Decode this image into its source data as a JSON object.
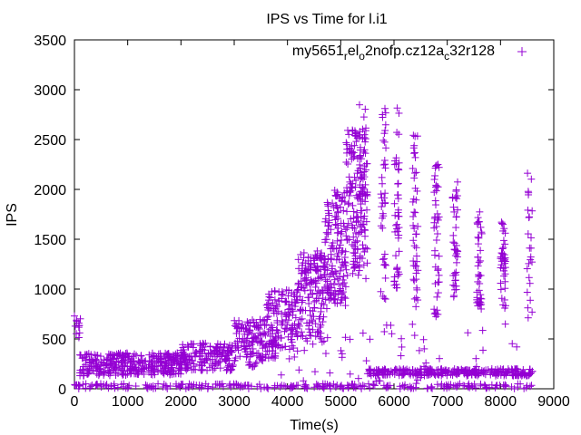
{
  "chart_data": {
    "type": "scatter",
    "title": "IPS vs Time for l.i1",
    "xlabel": "Time(s)",
    "ylabel": "IPS",
    "xlim": [
      0,
      9000
    ],
    "ylim": [
      0,
      3500
    ],
    "x_ticks": [
      "0",
      "1000",
      "2000",
      "3000",
      "4000",
      "5000",
      "6000",
      "7000",
      "8000",
      "9000"
    ],
    "y_ticks": [
      "0",
      "500",
      "1000",
      "1500",
      "2000",
      "2500",
      "3000",
      "3500"
    ],
    "grid": false,
    "legend_position": "top-right",
    "series": [
      {
        "name": "my5651_rel_o2nofp.cz12a_c32r128",
        "name_parts": [
          {
            "t": "my5651",
            "sub": false
          },
          {
            "t": "r",
            "sub": true
          },
          {
            "t": "el",
            "sub": false
          },
          {
            "t": "o",
            "sub": true
          },
          {
            "t": "2nofp.cz12a",
            "sub": false
          },
          {
            "t": "c",
            "sub": true
          },
          {
            "t": "32r128",
            "sub": false
          }
        ],
        "color": "#9400d3",
        "marker": "plus",
        "point_bands": [
          {
            "x": [
              0,
              120
            ],
            "y": [
              500,
              750
            ],
            "n": 12
          },
          {
            "x": [
              100,
              1000
            ],
            "y": [
              130,
              360
            ],
            "n": 160
          },
          {
            "x": [
              1000,
              2000
            ],
            "y": [
              140,
              360
            ],
            "n": 180
          },
          {
            "x": [
              2000,
              3000
            ],
            "y": [
              180,
              460
            ],
            "n": 180
          },
          {
            "x": [
              3000,
              3600
            ],
            "y": [
              220,
              700
            ],
            "n": 120
          },
          {
            "x": [
              3600,
              4200
            ],
            "y": [
              300,
              1000
            ],
            "n": 150
          },
          {
            "x": [
              4200,
              4700
            ],
            "y": [
              500,
              1400
            ],
            "n": 150
          },
          {
            "x": [
              4700,
              5100
            ],
            "y": [
              800,
              2000
            ],
            "n": 150
          },
          {
            "x": [
              5100,
              5500
            ],
            "y": [
              1100,
              2600
            ],
            "n": 160
          },
          {
            "x": [
              5350,
              5500
            ],
            "y": [
              1500,
              2950
            ],
            "n": 30
          },
          {
            "x": [
              5750,
              5850
            ],
            "y": [
              900,
              2850
            ],
            "n": 40
          },
          {
            "x": [
              6000,
              6100
            ],
            "y": [
              1000,
              2850
            ],
            "n": 45
          },
          {
            "x": [
              6350,
              6450
            ],
            "y": [
              800,
              2550
            ],
            "n": 45
          },
          {
            "x": [
              6750,
              6850
            ],
            "y": [
              700,
              2300
            ],
            "n": 45
          },
          {
            "x": [
              7100,
              7200
            ],
            "y": [
              900,
              2100
            ],
            "n": 40
          },
          {
            "x": [
              7550,
              7650
            ],
            "y": [
              800,
              1800
            ],
            "n": 40
          },
          {
            "x": [
              8000,
              8100
            ],
            "y": [
              800,
              1700
            ],
            "n": 40
          },
          {
            "x": [
              8500,
              8600
            ],
            "y": [
              700,
              2200
            ],
            "n": 25
          },
          {
            "x": [
              5500,
              8600
            ],
            "y": [
              130,
              200
            ],
            "n": 300
          },
          {
            "x": [
              0,
              8600
            ],
            "y": [
              0,
              50
            ],
            "n": 260
          },
          {
            "x": [
              3000,
              8600
            ],
            "y": [
              50,
              650
            ],
            "n": 60
          }
        ]
      }
    ]
  }
}
